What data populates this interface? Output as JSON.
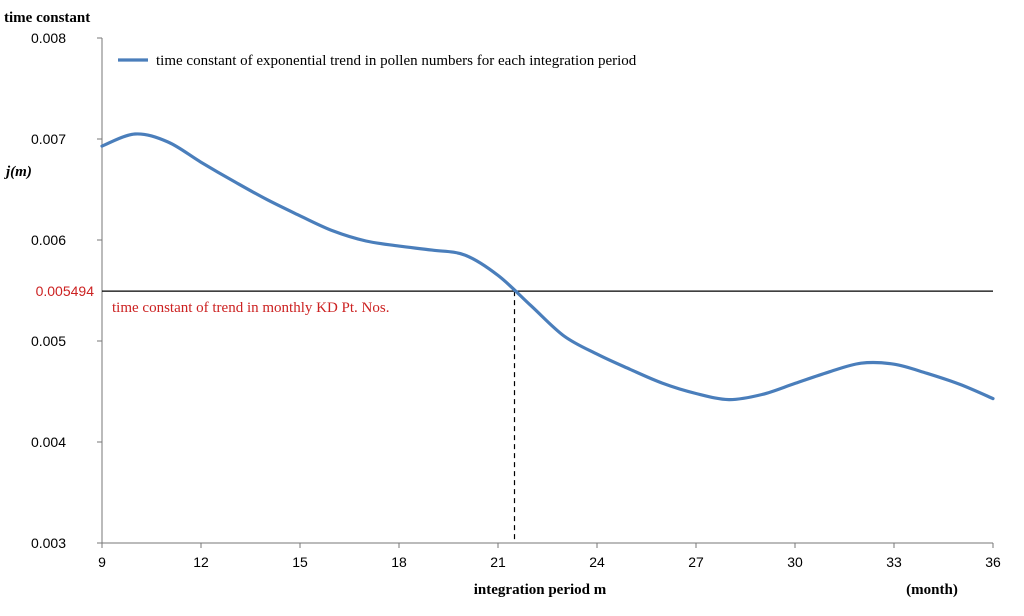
{
  "chart_data": {
    "type": "line",
    "y_axis_title": "time constant",
    "y_axis_symbol": "j(m)",
    "x_axis_title": "integration period m",
    "x_unit": "(month)",
    "xlim": [
      9,
      36
    ],
    "ylim": [
      0.003,
      0.008
    ],
    "x_ticks": [
      "9",
      "12",
      "15",
      "18",
      "21",
      "24",
      "27",
      "30",
      "33",
      "36"
    ],
    "y_ticks": [
      "0.003",
      "0.004",
      "0.005",
      "0.006",
      "0.007",
      "0.008"
    ],
    "series": [
      {
        "name": "time constant of exponential trend in pollen numbers for each integration period",
        "color": "#4a7ebb",
        "x": [
          9,
          10,
          11,
          12,
          13,
          14,
          15,
          16,
          17,
          18,
          19,
          20,
          21,
          22,
          23,
          24,
          25,
          26,
          27,
          28,
          29,
          30,
          31,
          32,
          33,
          34,
          35,
          36
        ],
        "y": [
          0.00693,
          0.00705,
          0.00697,
          0.00677,
          0.00658,
          0.0064,
          0.00624,
          0.00609,
          0.00599,
          0.00594,
          0.0059,
          0.00585,
          0.00565,
          0.00535,
          0.00505,
          0.00487,
          0.00472,
          0.00458,
          0.00448,
          0.00442,
          0.00447,
          0.00458,
          0.00469,
          0.00478,
          0.00477,
          0.00468,
          0.00457,
          0.00443
        ]
      }
    ],
    "reference": {
      "value": 0.005494,
      "value_label": "0.005494",
      "label": "time constant of trend in monthly KD Pt. Nos.",
      "color": "#cc2222",
      "intersection_x": 21.5
    }
  }
}
